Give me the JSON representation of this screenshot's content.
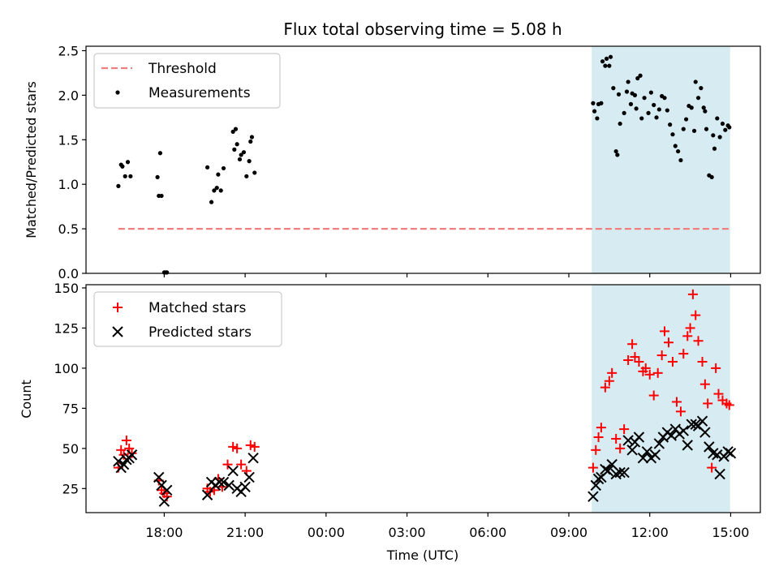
{
  "chart_data": {
    "type": "scatter",
    "title": "Flux total observing time = 5.08 h",
    "xlabel": "Time (UTC)",
    "x_tick_labels": [
      "18:00",
      "21:00",
      "00:00",
      "03:00",
      "06:00",
      "09:00",
      "12:00",
      "15:00"
    ],
    "x_tick_hours": [
      18,
      21,
      24,
      27,
      30,
      33,
      36,
      39
    ],
    "xlim_hours": [
      15.1,
      40.1
    ],
    "shaded_span_hours": [
      33.85,
      38.98
    ],
    "shade_color": "#add8e6",
    "panels": [
      {
        "ylabel": "Matched/Predicted stars",
        "ylim": [
          0,
          2.55
        ],
        "yticks": [
          "0.0",
          "0.5",
          "1.0",
          "1.5",
          "2.0",
          "2.5"
        ],
        "ytick_values": [
          0,
          0.5,
          1.0,
          1.5,
          2.0,
          2.5
        ],
        "legend": [
          "Threshold",
          "Measurements"
        ],
        "threshold": {
          "name": "Threshold",
          "value": 0.5,
          "x_range_hours": [
            16.3,
            39.0
          ],
          "color": "#f08080"
        },
        "measurements": {
          "name": "Measurements",
          "color": "#000000",
          "x_hours": [
            16.3,
            16.4,
            16.45,
            16.55,
            16.65,
            16.75,
            17.75,
            17.8,
            17.85,
            17.9,
            18.0,
            18.05,
            18.1,
            19.6,
            19.75,
            19.85,
            19.95,
            20.0,
            20.1,
            20.2,
            20.55,
            20.6,
            20.65,
            20.7,
            20.8,
            20.85,
            20.95,
            21.05,
            21.15,
            21.2,
            21.25,
            21.35,
            33.9,
            33.95,
            34.05,
            34.1,
            34.2,
            34.25,
            34.35,
            34.4,
            34.5,
            34.55,
            34.65,
            34.75,
            34.8,
            34.85,
            34.9,
            35.05,
            35.15,
            35.2,
            35.3,
            35.35,
            35.45,
            35.5,
            35.55,
            35.65,
            35.7,
            35.8,
            35.95,
            36.05,
            36.15,
            36.25,
            36.35,
            36.45,
            36.55,
            36.65,
            36.75,
            36.85,
            36.95,
            37.05,
            37.15,
            37.25,
            37.35,
            37.45,
            37.55,
            37.65,
            37.7,
            37.8,
            37.9,
            38.0,
            38.05,
            38.1,
            38.2,
            38.3,
            38.35,
            38.4,
            38.5,
            38.6,
            38.7,
            38.8,
            38.9,
            38.95
          ],
          "y": [
            0.98,
            1.22,
            1.2,
            1.09,
            1.25,
            1.09,
            1.08,
            0.87,
            1.35,
            0.87,
            0.01,
            0.01,
            0.01,
            1.19,
            0.8,
            0.93,
            0.96,
            1.11,
            0.93,
            1.18,
            1.59,
            1.39,
            1.62,
            1.45,
            1.28,
            1.33,
            1.36,
            1.09,
            1.26,
            1.48,
            1.53,
            1.13,
            1.91,
            1.82,
            1.74,
            1.9,
            1.91,
            2.38,
            2.33,
            2.41,
            2.33,
            2.43,
            2.08,
            1.37,
            1.33,
            2.01,
            1.68,
            1.8,
            2.04,
            2.15,
            1.9,
            2.02,
            2.0,
            1.85,
            2.19,
            2.22,
            1.74,
            1.97,
            1.8,
            2.03,
            1.89,
            1.75,
            1.84,
            1.99,
            1.97,
            1.83,
            1.67,
            1.56,
            1.43,
            1.37,
            1.27,
            1.62,
            1.73,
            1.88,
            1.86,
            1.6,
            2.15,
            1.97,
            2.08,
            1.86,
            1.82,
            1.62,
            1.1,
            1.08,
            1.55,
            1.4,
            1.74,
            1.53,
            1.68,
            1.61,
            1.66,
            1.64
          ]
        }
      },
      {
        "ylabel": "Count",
        "ylim": [
          10,
          152
        ],
        "yticks": [
          "25",
          "50",
          "75",
          "100",
          "125",
          "150"
        ],
        "ytick_values": [
          25,
          50,
          75,
          100,
          125,
          150
        ],
        "legend": [
          "Matched stars",
          "Predicted stars"
        ],
        "matched": {
          "name": "Matched stars",
          "color": "#ff0000",
          "x_hours": [
            16.3,
            16.4,
            16.5,
            16.6,
            16.7,
            16.8,
            17.8,
            17.9,
            18.0,
            18.1,
            19.6,
            19.7,
            19.85,
            20.0,
            20.15,
            20.35,
            20.55,
            20.7,
            20.85,
            21.05,
            21.2,
            21.35,
            33.9,
            34.0,
            34.1,
            34.2,
            34.35,
            34.5,
            34.6,
            34.75,
            34.9,
            35.05,
            35.2,
            35.35,
            35.45,
            35.6,
            35.75,
            35.85,
            36.0,
            36.15,
            36.3,
            36.45,
            36.55,
            36.7,
            36.85,
            37.0,
            37.15,
            37.25,
            37.4,
            37.5,
            37.6,
            37.7,
            37.8,
            37.95,
            38.05,
            38.15,
            38.3,
            38.45,
            38.55,
            38.7,
            38.85,
            38.95
          ],
          "y": [
            38,
            49,
            46,
            55,
            50,
            47,
            30,
            24,
            22,
            20,
            25,
            23,
            24,
            31,
            26,
            40,
            51,
            50,
            40,
            36,
            52,
            51,
            38,
            49,
            57,
            63,
            88,
            92,
            97,
            56,
            50,
            62,
            105,
            115,
            107,
            104,
            98,
            100,
            96,
            83,
            97,
            108,
            123,
            116,
            104,
            79,
            73,
            109,
            120,
            125,
            146,
            133,
            117,
            104,
            90,
            78,
            38,
            100,
            84,
            80,
            78,
            77
          ]
        },
        "predicted": {
          "name": "Predicted stars",
          "color": "#000000",
          "x_hours": [
            16.3,
            16.4,
            16.5,
            16.6,
            16.7,
            16.8,
            17.8,
            17.9,
            18.0,
            18.1,
            19.6,
            19.75,
            19.9,
            20.05,
            20.2,
            20.4,
            20.55,
            20.7,
            20.85,
            21.0,
            21.15,
            21.3,
            33.9,
            34.0,
            34.1,
            34.2,
            34.35,
            34.45,
            34.6,
            34.75,
            34.9,
            35.05,
            35.2,
            35.35,
            35.45,
            35.6,
            35.75,
            35.9,
            36.05,
            36.2,
            36.35,
            36.5,
            36.65,
            36.8,
            36.95,
            37.1,
            37.25,
            37.4,
            37.55,
            37.7,
            37.8,
            37.95,
            38.05,
            38.2,
            38.35,
            38.5,
            38.6,
            38.75,
            38.9,
            39.0
          ],
          "y": [
            42,
            38,
            40,
            43,
            44,
            46,
            32,
            27,
            17,
            24,
            21,
            29,
            27,
            29,
            29,
            27,
            36,
            25,
            23,
            26,
            32,
            44,
            20,
            27,
            31,
            32,
            37,
            36,
            40,
            34,
            35,
            35,
            55,
            49,
            54,
            57,
            44,
            48,
            44,
            46,
            53,
            57,
            60,
            58,
            62,
            59,
            61,
            52,
            65,
            65,
            64,
            67,
            60,
            51,
            47,
            46,
            34,
            45,
            48,
            47
          ]
        }
      }
    ]
  }
}
